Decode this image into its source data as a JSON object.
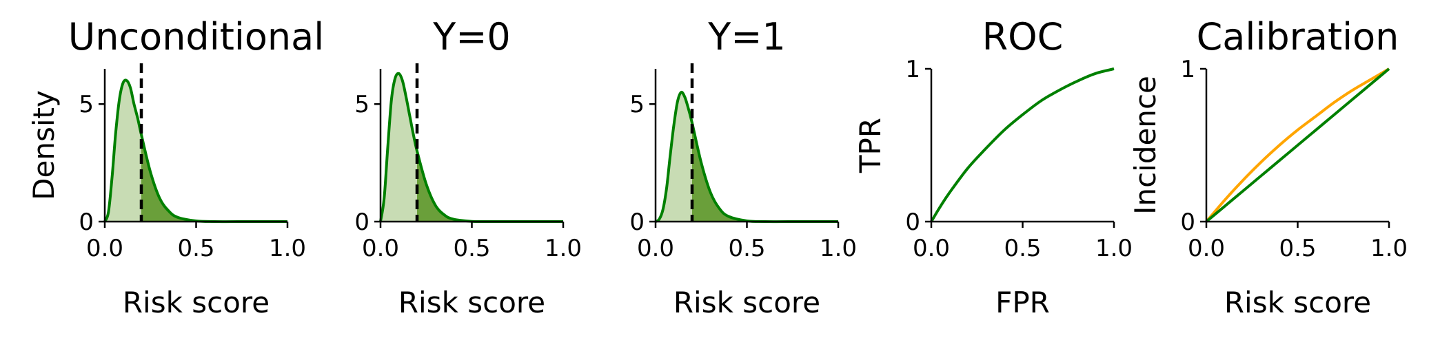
{
  "colors": {
    "model": "#008000",
    "fill": "#6a9f3a",
    "fill_light": "#c8dcb4",
    "calibration_ideal": "#ffa500",
    "threshold": "#000000"
  },
  "chart_data": [
    {
      "type": "area",
      "title": "Unconditional",
      "xlabel": "Risk score",
      "ylabel": "Density",
      "xlim": [
        0,
        1
      ],
      "ylim": [
        0,
        6.5
      ],
      "xticks": [
        "0.0",
        "0.5",
        "1.0"
      ],
      "yticks": [
        "0",
        "5"
      ],
      "threshold": 0.2,
      "x": [
        0,
        0.02,
        0.04,
        0.06,
        0.08,
        0.1,
        0.12,
        0.14,
        0.16,
        0.18,
        0.2,
        0.25,
        0.3,
        0.35,
        0.4,
        0.5,
        0.6,
        0.8,
        1.0
      ],
      "series": [
        {
          "values": [
            0,
            0.4,
            1.9,
            3.8,
            5.2,
            5.9,
            6.0,
            5.7,
            5.0,
            4.4,
            3.7,
            2.1,
            1.0,
            0.45,
            0.18,
            0.03,
            0.0,
            0.0,
            0.0
          ]
        }
      ]
    },
    {
      "type": "area",
      "title": "Y=0",
      "xlabel": "Risk score",
      "ylabel": "",
      "xlim": [
        0,
        1
      ],
      "ylim": [
        0,
        6.5
      ],
      "xticks": [
        "0.0",
        "0.5",
        "1.0"
      ],
      "yticks": [
        "0",
        "5"
      ],
      "threshold": 0.2,
      "x": [
        0,
        0.02,
        0.04,
        0.06,
        0.08,
        0.1,
        0.12,
        0.14,
        0.16,
        0.18,
        0.2,
        0.25,
        0.3,
        0.35,
        0.4,
        0.5,
        0.6,
        0.8,
        1.0
      ],
      "series": [
        {
          "values": [
            0,
            1.0,
            3.2,
            5.2,
            6.1,
            6.3,
            6.0,
            5.3,
            4.5,
            3.7,
            3.0,
            1.6,
            0.7,
            0.28,
            0.1,
            0.01,
            0.0,
            0.0,
            0.0
          ]
        }
      ]
    },
    {
      "type": "area",
      "title": "Y=1",
      "xlabel": "Risk score",
      "ylabel": "",
      "xlim": [
        0,
        1
      ],
      "ylim": [
        0,
        6.5
      ],
      "xticks": [
        "0.0",
        "0.5",
        "1.0"
      ],
      "yticks": [
        "0",
        "5"
      ],
      "threshold": 0.2,
      "x": [
        0,
        0.02,
        0.04,
        0.06,
        0.08,
        0.1,
        0.12,
        0.14,
        0.16,
        0.18,
        0.2,
        0.25,
        0.3,
        0.35,
        0.4,
        0.5,
        0.6,
        0.8,
        1.0
      ],
      "series": [
        {
          "values": [
            0,
            0.1,
            0.5,
            1.4,
            2.8,
            4.1,
            5.1,
            5.5,
            5.3,
            4.8,
            4.2,
            2.5,
            1.25,
            0.55,
            0.22,
            0.03,
            0.0,
            0.0,
            0.0
          ]
        }
      ]
    },
    {
      "type": "line",
      "title": "ROC",
      "xlabel": "FPR",
      "ylabel": "TPR",
      "xlim": [
        0,
        1
      ],
      "ylim": [
        0,
        1
      ],
      "xticks": [
        "0.0",
        "0.5",
        "1.0"
      ],
      "yticks": [
        "0",
        "1"
      ],
      "x": [
        0,
        0.05,
        0.1,
        0.2,
        0.3,
        0.4,
        0.5,
        0.6,
        0.7,
        0.8,
        0.9,
        1.0
      ],
      "series": [
        {
          "values": [
            0,
            0.1,
            0.19,
            0.35,
            0.48,
            0.6,
            0.7,
            0.79,
            0.86,
            0.92,
            0.97,
            1.0
          ]
        }
      ]
    },
    {
      "type": "line",
      "title": "Calibration",
      "xlabel": "Risk score",
      "ylabel": "Incidence",
      "xlim": [
        0,
        1
      ],
      "ylim": [
        0,
        1
      ],
      "xticks": [
        "0.0",
        "0.5",
        "1.0"
      ],
      "yticks": [
        "0",
        "1"
      ],
      "x": [
        0,
        0.1,
        0.2,
        0.3,
        0.4,
        0.5,
        0.6,
        0.7,
        0.8,
        0.9,
        1.0
      ],
      "series": [
        {
          "values": [
            0,
            0.14,
            0.27,
            0.39,
            0.5,
            0.6,
            0.69,
            0.78,
            0.86,
            0.93,
            1.0
          ]
        },
        {
          "values": [
            0,
            0.1,
            0.2,
            0.3,
            0.4,
            0.5,
            0.6,
            0.7,
            0.8,
            0.9,
            1.0
          ]
        }
      ]
    }
  ]
}
